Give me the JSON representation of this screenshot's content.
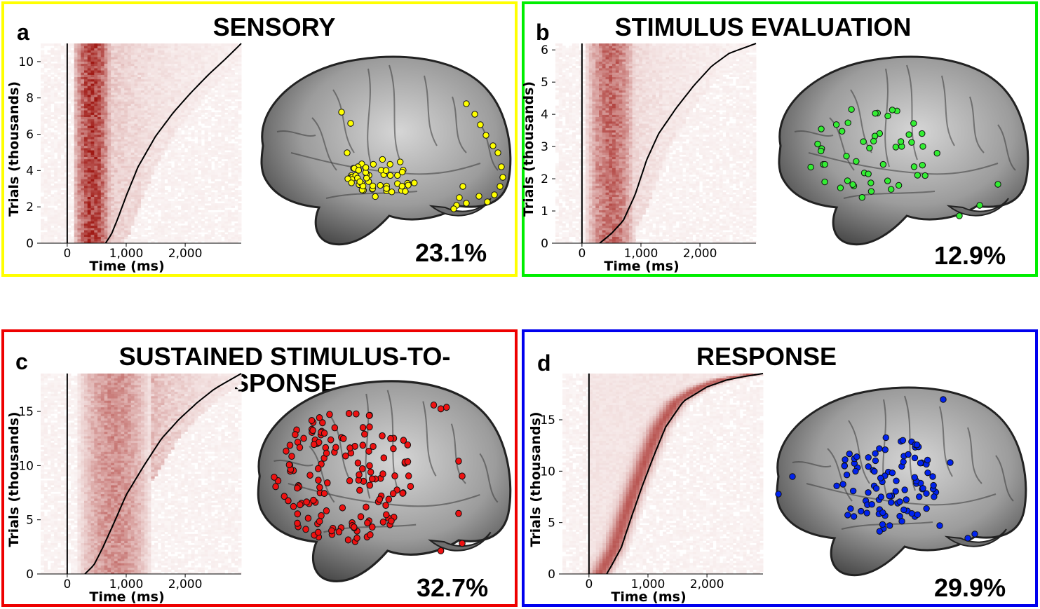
{
  "panels": [
    {
      "id": "a",
      "letter": "a",
      "title": "SENSORY",
      "percent": "23.1%",
      "color": "#ffff00",
      "dot_color": "#ffff00",
      "chart_data": {
        "type": "heatmap",
        "xlabel": "Time (ms)",
        "ylabel": "Trials (thousands)",
        "xlim": [
          -450,
          2950
        ],
        "ylim": [
          0,
          11
        ],
        "xticks": [
          0,
          1000,
          2000
        ],
        "xtick_labels": [
          "0",
          "1,000",
          "2,000"
        ],
        "yticks": [
          0,
          2,
          4,
          6,
          8,
          10
        ],
        "ytick_labels": [
          "0",
          "2",
          "4",
          "6",
          "8",
          "10"
        ],
        "activation_window_ms": [
          100,
          750
        ],
        "activation_strength": 1.0,
        "late_strength": 0.25,
        "rt_curve": {
          "x": [
            650,
            750,
            850,
            1000,
            1200,
            1500,
            1800,
            2100,
            2400,
            2700,
            2950
          ],
          "y": [
            0,
            0.5,
            1.3,
            2.6,
            4.2,
            5.9,
            7.2,
            8.3,
            9.3,
            10.2,
            11
          ]
        }
      }
    },
    {
      "id": "b",
      "letter": "b",
      "title": "STIMULUS EVALUATION",
      "percent": "12.9%",
      "color": "#00ee00",
      "dot_color": "#33ee33",
      "chart_data": {
        "type": "heatmap",
        "xlabel": "Time (ms)",
        "ylabel": "Trials (thousands)",
        "xlim": [
          -450,
          2950
        ],
        "ylim": [
          0,
          6.2
        ],
        "xticks": [
          0,
          1000,
          2000
        ],
        "xtick_labels": [
          "0",
          "1,000",
          "2,000"
        ],
        "yticks": [
          0,
          1,
          2,
          3,
          4,
          5,
          6
        ],
        "ytick_labels": [
          "0",
          "1",
          "2",
          "3",
          "4",
          "5",
          "6"
        ],
        "activation_window_ms": [
          80,
          900
        ],
        "activation_strength": 0.75,
        "late_strength": 0.15,
        "rt_curve": {
          "x": [
            300,
            500,
            700,
            900,
            1100,
            1300,
            1600,
            1900,
            2200,
            2500,
            2950
          ],
          "y": [
            0,
            0.3,
            0.7,
            1.5,
            2.6,
            3.4,
            4.2,
            4.9,
            5.5,
            5.9,
            6.2
          ]
        }
      }
    },
    {
      "id": "c",
      "letter": "c",
      "title": "SUSTAINED STIMULUS-TO-\nSPONSE",
      "percent": "32.7%",
      "color": "#ee0000",
      "dot_color": "#ee1111",
      "chart_data": {
        "type": "heatmap",
        "xlabel": "Time (ms)",
        "ylabel": "Trials (thousands)",
        "xlim": [
          -450,
          2950
        ],
        "ylim": [
          0,
          18.5
        ],
        "xticks": [
          0,
          1000,
          2000
        ],
        "xtick_labels": [
          "0",
          "1,000",
          "2,000"
        ],
        "yticks": [
          0,
          5,
          10,
          15
        ],
        "ytick_labels": [
          "0",
          "5",
          "10",
          "15"
        ],
        "activation_window_ms": [
          200,
          1400
        ],
        "activation_strength": 0.55,
        "late_strength": 0.35,
        "rt_curve": {
          "x": [
            300,
            450,
            600,
            800,
            1000,
            1300,
            1600,
            1900,
            2200,
            2500,
            2950
          ],
          "y": [
            0,
            0.8,
            2.4,
            4.8,
            7.3,
            10,
            12.5,
            14.3,
            15.8,
            17.1,
            18.5
          ]
        }
      }
    },
    {
      "id": "d",
      "letter": "d",
      "title": "RESPONSE",
      "percent": "29.9%",
      "color": "#0000ee",
      "dot_color": "#0022ee",
      "chart_data": {
        "type": "heatmap",
        "xlabel": "Time (ms)",
        "ylabel": "Trials (thousands)",
        "xlim": [
          -450,
          2950
        ],
        "ylim": [
          0,
          19.5
        ],
        "xticks": [
          0,
          1000,
          2000
        ],
        "xtick_labels": [
          "0",
          "1,000",
          "2,000"
        ],
        "yticks": [
          0,
          5,
          10,
          15
        ],
        "ytick_labels": [
          "0",
          "5",
          "10",
          "15"
        ],
        "activation_window_ms": [
          -100,
          0
        ],
        "activation_strength": 0.6,
        "late_strength": 0.0,
        "rt_following": true,
        "rt_curve": {
          "x": [
            300,
            400,
            550,
            700,
            900,
            1100,
            1300,
            1600,
            2000,
            2400,
            2950
          ],
          "y": [
            0,
            1,
            2.6,
            5.2,
            8.5,
            11.5,
            14.3,
            16.8,
            18.2,
            19,
            19.5
          ]
        }
      }
    }
  ]
}
